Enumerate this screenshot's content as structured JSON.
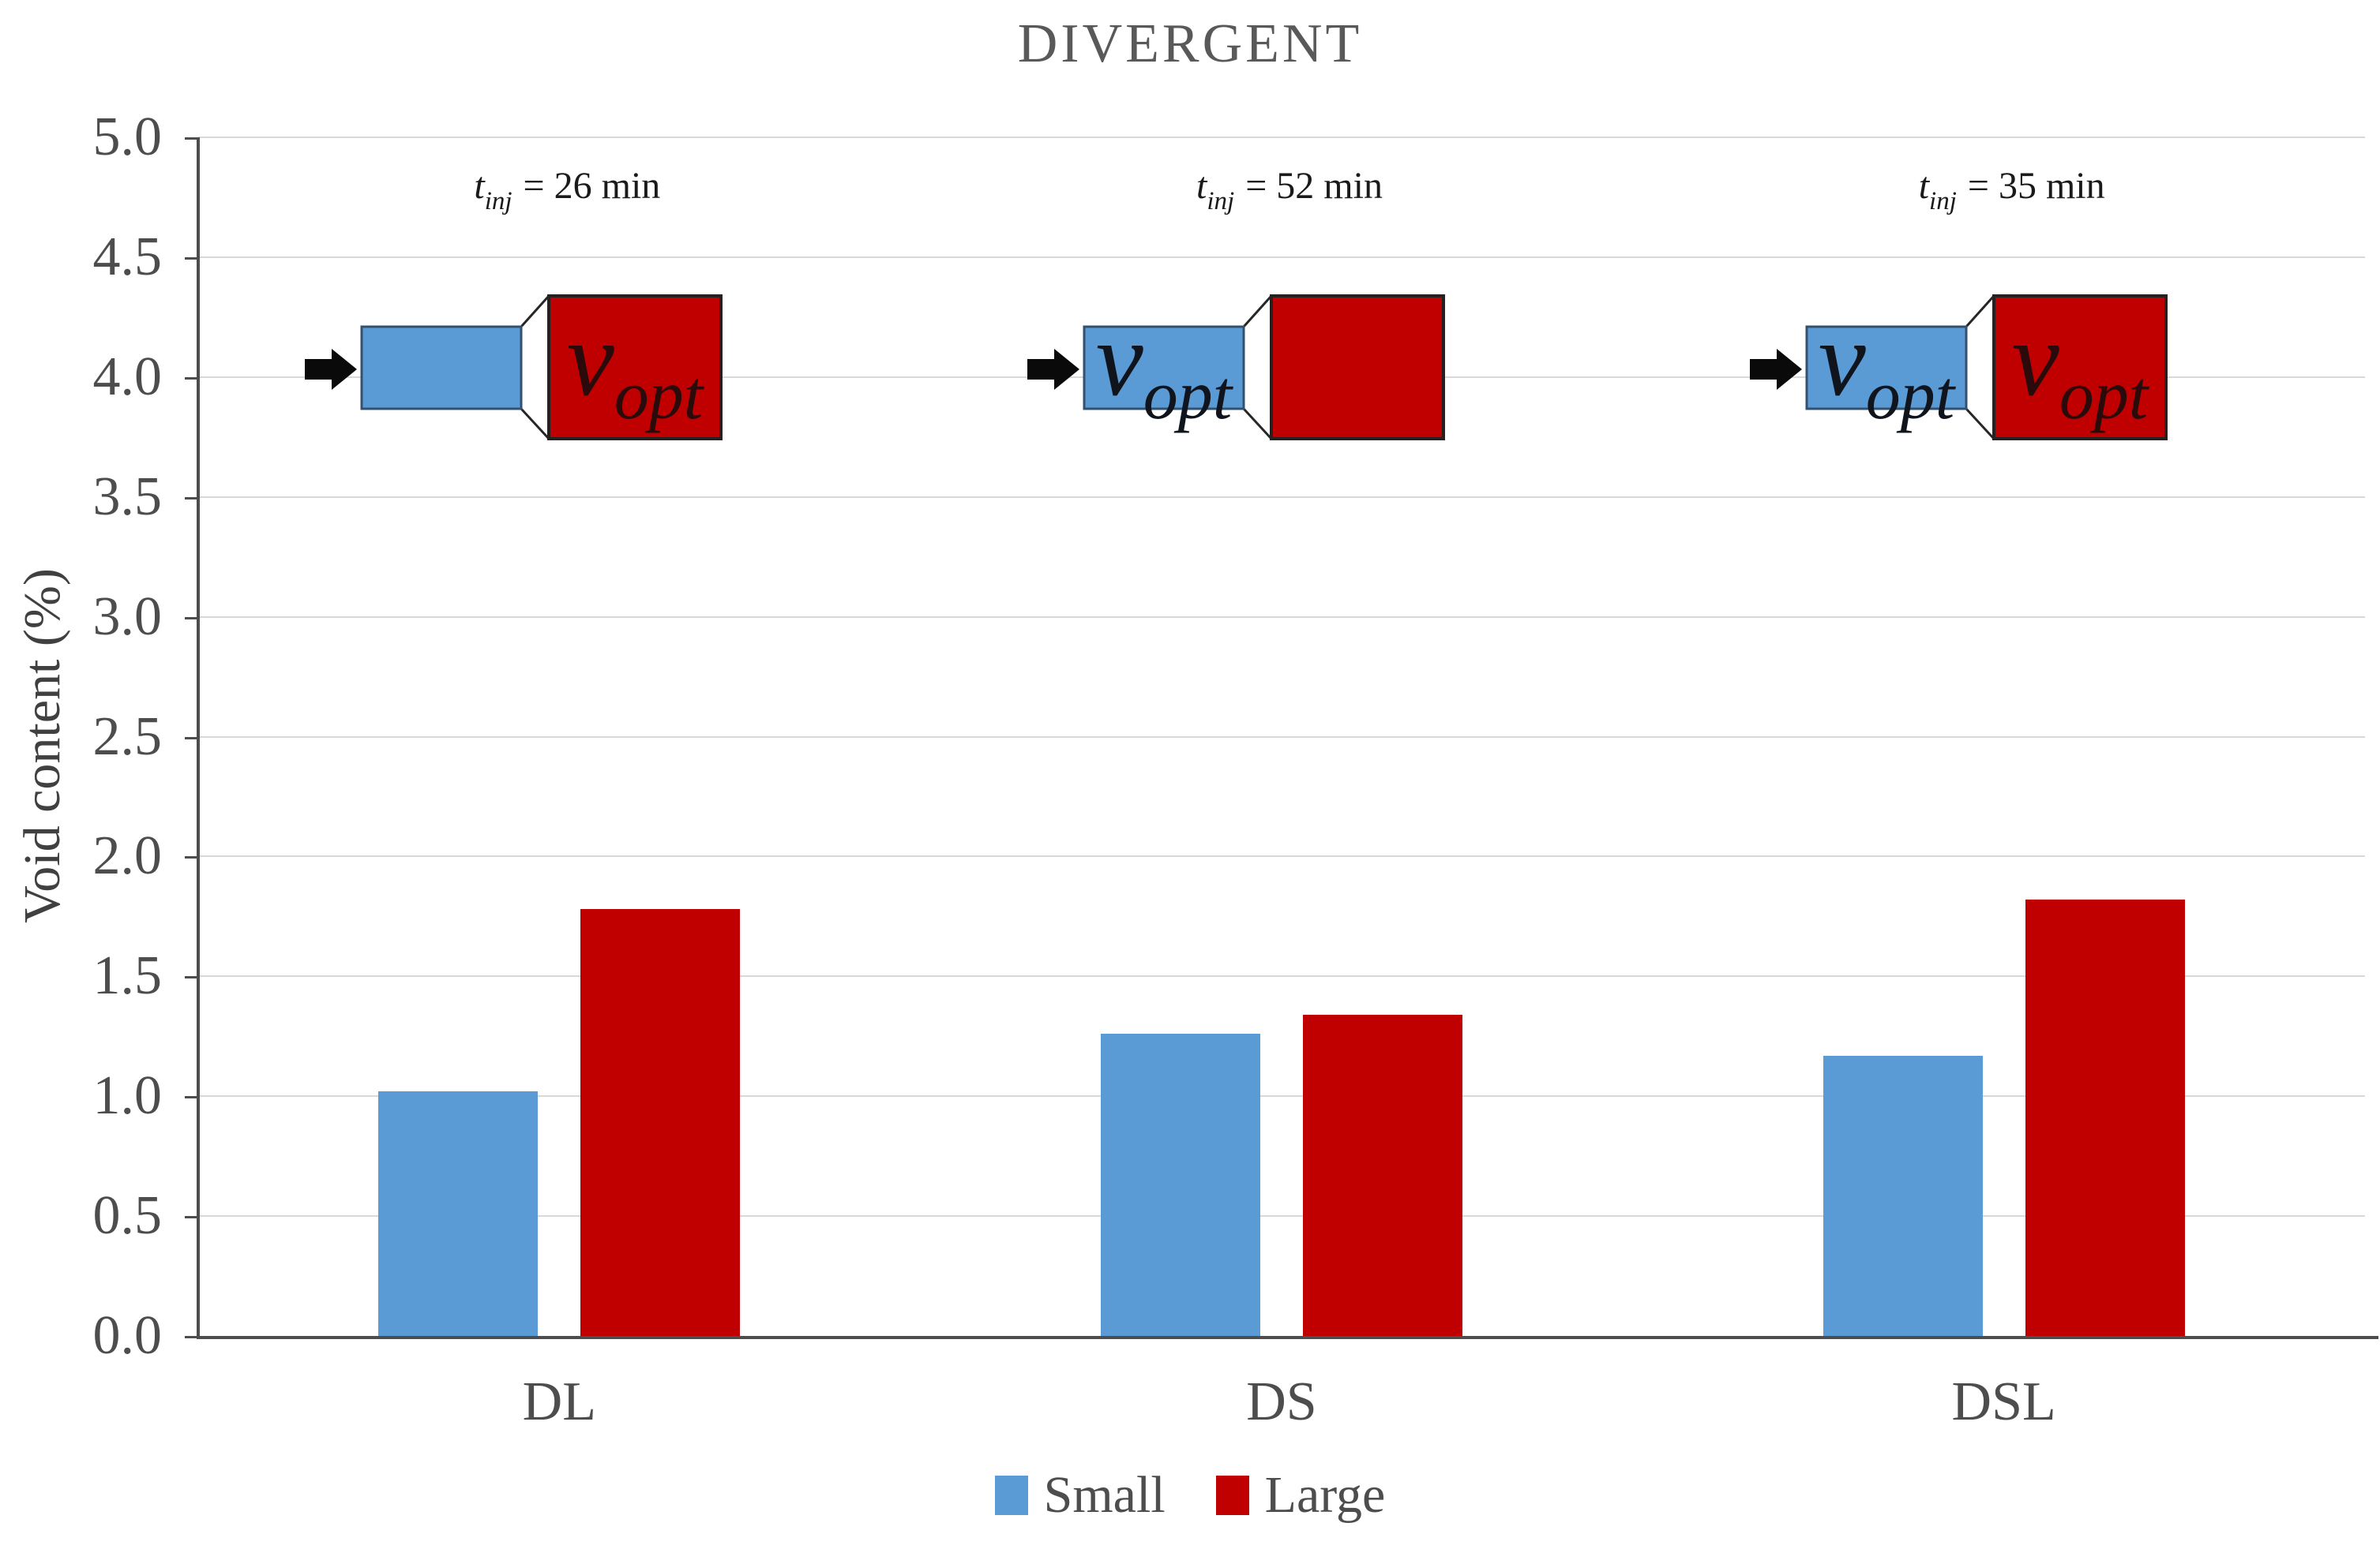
{
  "chart_data": {
    "type": "bar",
    "title": "DIVERGENT",
    "ylabel": "Void content (%)",
    "ylim": [
      0.0,
      5.0
    ],
    "ytick_step": 0.5,
    "grid": true,
    "legend_position": "bottom",
    "categories": [
      "DL",
      "DS",
      "DSL"
    ],
    "series": [
      {
        "name": "Small",
        "color": "#5B9BD5",
        "values": [
          1.02,
          1.26,
          1.17
        ]
      },
      {
        "name": "Large",
        "color": "#C00000",
        "values": [
          1.78,
          1.34,
          1.82
        ]
      }
    ],
    "y_axis": {
      "tick_labels": [
        "0.0",
        "0.5",
        "1.0",
        "1.5",
        "2.0",
        "2.5",
        "3.0",
        "3.5",
        "4.0",
        "4.5",
        "5.0"
      ]
    },
    "annotations": [
      {
        "category": "DL",
        "label_var": "t",
        "label_sub": "inj",
        "label_rest": "= 26 min",
        "vopt_small": false,
        "vopt_large": true
      },
      {
        "category": "DS",
        "label_var": "t",
        "label_sub": "inj",
        "label_rest": "= 52 min",
        "vopt_small": true,
        "vopt_large": false
      },
      {
        "category": "DSL",
        "label_var": "t",
        "label_sub": "inj",
        "label_rest": "= 35 min",
        "vopt_small": true,
        "vopt_large": true
      }
    ],
    "vopt_label": {
      "main": "v",
      "sub": "opt"
    }
  },
  "colors": {
    "small_fill": "#5B9BD5",
    "small_border": "#33506E",
    "large_fill": "#C00000",
    "large_border": "#262020",
    "funnel_fill": "#FFFFFF",
    "funnel_stroke": "#262626",
    "arrow": "#0a0a0a",
    "gridline": "#D9D9D9",
    "axis": "#4d4d4d",
    "title_text": "#595959",
    "tick_text": "#4d4d4d",
    "annotation_text": "#1a1a1a",
    "vopt_on_small": "#10141c",
    "vopt_on_large": "#2a0a0a"
  }
}
